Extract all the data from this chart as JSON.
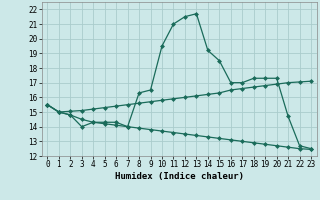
{
  "title": "",
  "xlabel": "Humidex (Indice chaleur)",
  "bg_color": "#cce8e8",
  "grid_color": "#aacccc",
  "line_color": "#1a6b5a",
  "xlim": [
    -0.5,
    23.5
  ],
  "ylim": [
    12,
    22.5
  ],
  "yticks": [
    12,
    13,
    14,
    15,
    16,
    17,
    18,
    19,
    20,
    21,
    22
  ],
  "xticks": [
    0,
    1,
    2,
    3,
    4,
    5,
    6,
    7,
    8,
    9,
    10,
    11,
    12,
    13,
    14,
    15,
    16,
    17,
    18,
    19,
    20,
    21,
    22,
    23
  ],
  "line1_x": [
    0,
    1,
    2,
    3,
    4,
    5,
    6,
    7,
    8,
    9,
    10,
    11,
    12,
    13,
    14,
    15,
    16,
    17,
    18,
    19,
    20,
    21,
    22,
    23
  ],
  "line1_y": [
    15.5,
    15.0,
    14.8,
    14.0,
    14.3,
    14.3,
    14.3,
    14.0,
    16.3,
    16.5,
    19.5,
    21.0,
    21.5,
    21.7,
    19.2,
    18.5,
    17.0,
    17.0,
    17.3,
    17.3,
    17.3,
    14.7,
    12.7,
    12.5
  ],
  "line2_x": [
    0,
    1,
    2,
    3,
    4,
    5,
    6,
    7,
    8,
    9,
    10,
    11,
    12,
    13,
    14,
    15,
    16,
    17,
    18,
    19,
    20,
    21,
    22,
    23
  ],
  "line2_y": [
    15.5,
    15.0,
    15.05,
    15.1,
    15.2,
    15.3,
    15.4,
    15.5,
    15.6,
    15.7,
    15.8,
    15.9,
    16.0,
    16.1,
    16.2,
    16.3,
    16.5,
    16.6,
    16.7,
    16.8,
    16.9,
    17.0,
    17.05,
    17.1
  ],
  "line3_x": [
    0,
    1,
    2,
    3,
    4,
    5,
    6,
    7,
    8,
    9,
    10,
    11,
    12,
    13,
    14,
    15,
    16,
    17,
    18,
    19,
    20,
    21,
    22,
    23
  ],
  "line3_y": [
    15.5,
    15.0,
    14.8,
    14.5,
    14.3,
    14.2,
    14.1,
    14.0,
    13.9,
    13.8,
    13.7,
    13.6,
    13.5,
    13.4,
    13.3,
    13.2,
    13.1,
    13.0,
    12.9,
    12.8,
    12.7,
    12.6,
    12.5,
    12.45
  ],
  "xlabel_fontsize": 6.5,
  "tick_fontsize": 5.5
}
